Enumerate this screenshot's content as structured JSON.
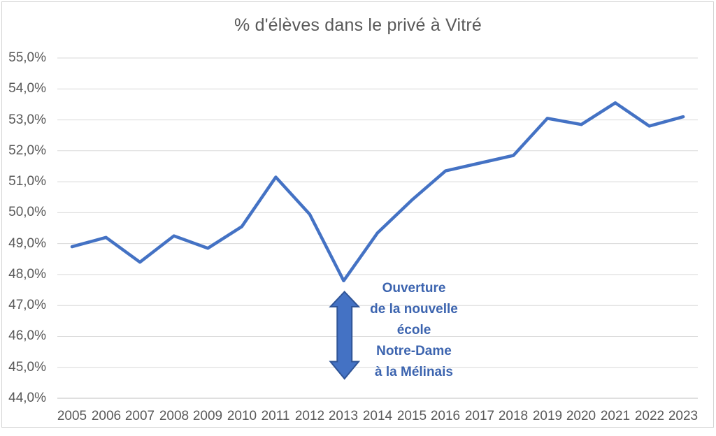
{
  "chart_data": {
    "type": "line",
    "title": "% d'élèves dans le privé à Vitré",
    "categories": [
      "2005",
      "2006",
      "2007",
      "2008",
      "2009",
      "2010",
      "2011",
      "2012",
      "2013",
      "2014",
      "2015",
      "2016",
      "2017",
      "2018",
      "2019",
      "2020",
      "2021",
      "2022",
      "2023"
    ],
    "series": [
      {
        "name": "% d'élèves dans le privé à Vitré",
        "values": [
          48.9,
          49.2,
          48.4,
          49.25,
          48.85,
          49.55,
          51.15,
          49.95,
          47.8,
          49.35,
          50.4,
          51.35,
          51.6,
          51.85,
          53.05,
          52.85,
          53.55,
          52.8,
          53.1
        ]
      }
    ],
    "ylim": [
      44.0,
      55.0
    ],
    "ytick_step": 1.0,
    "yticklabels_top_to_bottom": [
      "55,0%",
      "54,0%",
      "53,0%",
      "52,0%",
      "51,0%",
      "50,0%",
      "49,0%",
      "48,0%",
      "47,0%",
      "46,0%",
      "45,0%",
      "44,0%"
    ],
    "grid": true,
    "legend": "none",
    "line_color": "#4472C4",
    "title_color": "#595959",
    "axis_label_color": "#595959",
    "gridline_color": "#D9D9D9",
    "axis_line_color": "#BFBFBF",
    "annotation": {
      "lines": [
        "Ouverture",
        "de la nouvelle",
        "école",
        "Notre-Dame",
        "à la Mélinais"
      ],
      "text_color": "#3C64AF",
      "arrow_glyph": "double-vertical-arrow",
      "arrow_fill": "#4472C4",
      "arrow_outline": "#2F5496",
      "target_category": "2013"
    }
  }
}
